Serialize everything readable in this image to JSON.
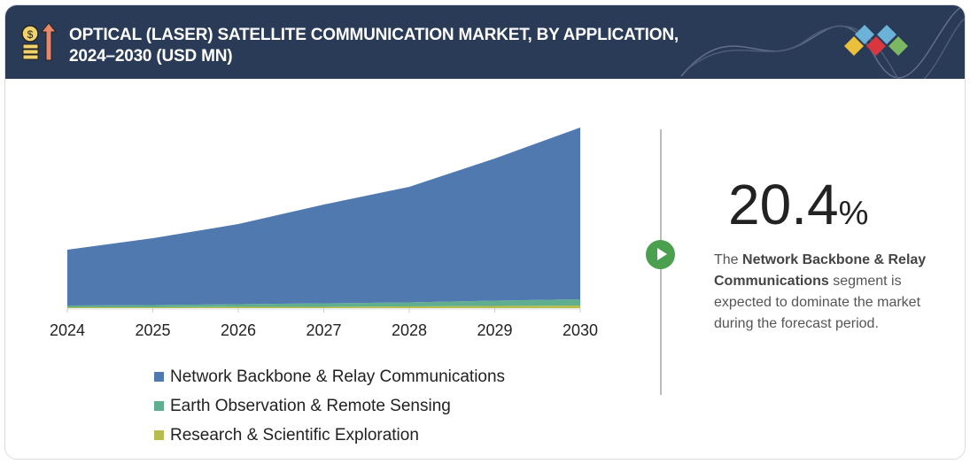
{
  "header": {
    "title_line1": "OPTICAL (LASER) SATELLITE COMMUNICATION MARKET, BY APPLICATION,",
    "title_line2": "2024–2030 (USD MN)",
    "icon": "money-growth-icon",
    "logo": "diamond-logo-icon"
  },
  "chart_data": {
    "type": "area",
    "stacked": true,
    "categories": [
      "2024",
      "2025",
      "2026",
      "2027",
      "2028",
      "2029",
      "2030"
    ],
    "series": [
      {
        "name": "Research & Scientific Exploration",
        "color": "#b5bd4f",
        "values": [
          1,
          1,
          1.5,
          1.5,
          2,
          2.5,
          3
        ]
      },
      {
        "name": "Earth Observation & Remote Sensing",
        "color": "#5fae8f",
        "values": [
          2,
          2.5,
          3,
          4,
          4.5,
          6,
          7
        ]
      },
      {
        "name": "Network Backbone & Relay Communications",
        "color": "#5079b0",
        "values": [
          63,
          75.5,
          90.5,
          111.5,
          130.5,
          160.5,
          194
        ]
      }
    ],
    "legend_order": [
      "Network Backbone & Relay Communications",
      "Earth Observation & Remote Sensing",
      "Research & Scientific Exploration"
    ],
    "legend_position": "bottom",
    "grid": false,
    "yaxis_shown": false
  },
  "highlight": {
    "value": "20.4",
    "unit": "%",
    "text_pre": "The ",
    "text_bold": "Network Backbone & Relay Communications",
    "text_post": " segment is expected to dominate the market during the forecast period.",
    "accent": "#4aa04f"
  }
}
